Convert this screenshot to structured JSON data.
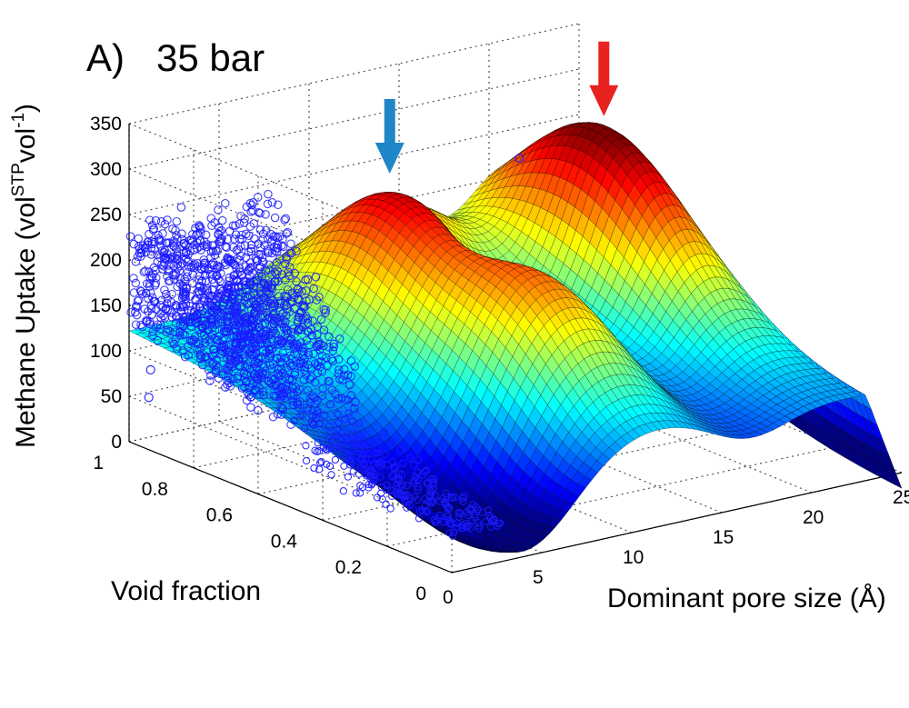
{
  "chart_data": {
    "type": "surface3d",
    "title": "A)   35 bar",
    "panel": "A)",
    "condition": "35 bar",
    "xlabel": "Dominant pore size (Å)",
    "ylabel": "Void fraction",
    "zlabel": {
      "main": "Methane Uptake (vol",
      "sup1": "STP",
      "mid": "vol",
      "sup2": "-1",
      "end": ")"
    },
    "x_ticks": [
      "0",
      "5",
      "10",
      "15",
      "20",
      "25"
    ],
    "y_ticks": [
      "0",
      "0.2",
      "0.4",
      "0.6",
      "0.8",
      "1"
    ],
    "z_ticks": [
      "0",
      "50",
      "100",
      "150",
      "200",
      "250",
      "300",
      "350"
    ],
    "xlim": [
      0,
      25
    ],
    "ylim": [
      0,
      1
    ],
    "zlim": [
      0,
      350
    ],
    "grid": true,
    "colormap": "jet",
    "surface_peaks": [
      {
        "pore_size": 21,
        "void_fraction": 0.7,
        "uptake": 287,
        "arrow_color": "#e8231f"
      },
      {
        "pore_size": 10,
        "void_fraction": 0.75,
        "uptake": 265,
        "arrow_color": "#1f86c8"
      },
      {
        "pore_size": 11,
        "void_fraction": 0.35,
        "uptake": 235,
        "arrow_color": ""
      }
    ],
    "scatter": {
      "marker": "circle",
      "color": "#1a1aff",
      "pore_size_range": [
        0,
        10
      ],
      "void_fraction_range": [
        0,
        1
      ],
      "uptake_range": [
        0,
        280
      ]
    }
  }
}
